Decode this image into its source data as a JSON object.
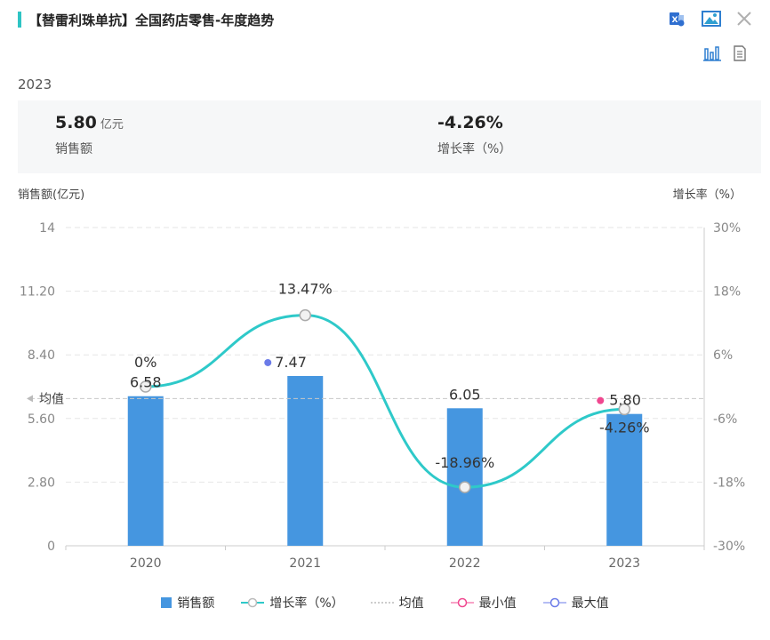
{
  "header": {
    "title": "【替雷利珠单抗】全国药店零售-年度趋势",
    "icons": [
      "excel-export-icon",
      "image-export-icon",
      "close-icon",
      "bar-chart-icon",
      "document-icon"
    ]
  },
  "year": "2023",
  "summary": {
    "sales_value": "5.80",
    "sales_unit": "亿元",
    "sales_label": "销售额",
    "growth_value": "-4.26%",
    "growth_label": "增长率（%）"
  },
  "axes": {
    "left_title": "销售额(亿元)",
    "right_title": "增长率（%）"
  },
  "avg_label": "均值",
  "legend": {
    "sales": "销售额",
    "growth": "增长率（%）",
    "avg": "均值",
    "min": "最小值",
    "max": "最大值"
  },
  "colors": {
    "bar": "#4596e0",
    "line": "#2ec9c9",
    "min": "#f0478f",
    "max": "#6b7be8",
    "title_mark": "#2ec4c4"
  },
  "chart_data": {
    "type": "bar",
    "categories": [
      "2020",
      "2021",
      "2022",
      "2023"
    ],
    "series": [
      {
        "name": "销售额",
        "type": "bar",
        "values": [
          6.58,
          7.47,
          6.05,
          5.8
        ],
        "labels": [
          "6.58",
          "7.47",
          "6.05",
          "5.80"
        ]
      },
      {
        "name": "增长率（%）",
        "type": "line",
        "values": [
          0,
          13.47,
          -18.96,
          -4.26
        ],
        "labels": [
          "0%",
          "13.47%",
          "-18.96%",
          "-4.26%"
        ]
      }
    ],
    "average": 6.475,
    "max_index": 1,
    "min_index": 3,
    "left_axis": {
      "ticks": [
        "0",
        "2.80",
        "5.60",
        "8.40",
        "11.20",
        "14"
      ],
      "min": 0,
      "max": 14
    },
    "right_axis": {
      "ticks": [
        "-30%",
        "-18%",
        "-6%",
        "6%",
        "18%",
        "30%"
      ],
      "min": -30,
      "max": 30
    }
  }
}
